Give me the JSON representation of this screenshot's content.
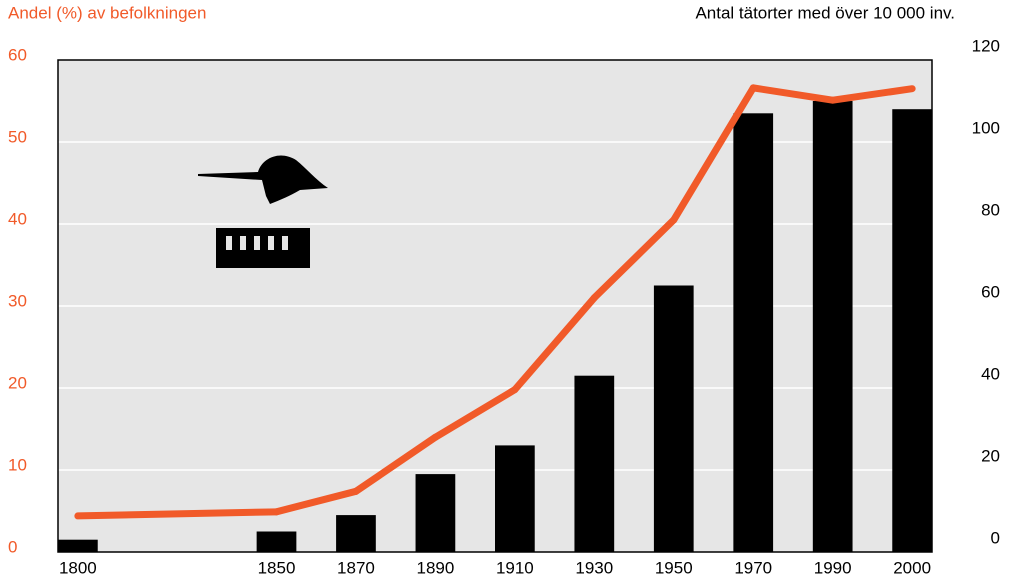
{
  "chart_data": {
    "type": "combo",
    "title": "Andel (%) av befolkningen",
    "y2_title": "Antal tätorter med över 10 000 inv.",
    "categories": [
      "1800",
      null,
      null,
      null,
      null,
      "1850",
      null,
      "1870",
      null,
      "1890",
      null,
      "1910",
      null,
      "1930",
      null,
      "1950",
      null,
      "1970",
      null,
      "1990",
      null,
      "2000"
    ],
    "series": [
      {
        "name": "Antal tätorter med över 10 000 inv.",
        "type": "bar",
        "axis": "y2",
        "color": "#000000",
        "values": [
          3,
          null,
          null,
          null,
          null,
          5,
          null,
          9,
          null,
          19,
          null,
          26,
          null,
          43,
          null,
          65,
          null,
          107,
          null,
          110,
          null,
          108
        ]
      },
      {
        "name": "Andel (%) av befolkningen",
        "type": "line",
        "axis": "y",
        "color": "#f15a29",
        "values": [
          4.4,
          null,
          null,
          null,
          null,
          4.9,
          null,
          7.4,
          null,
          14,
          null,
          19.8,
          null,
          31,
          null,
          40.5,
          null,
          56.6,
          null,
          55.1,
          null,
          56.5
        ]
      }
    ],
    "ylim": [
      0,
      60
    ],
    "yticks": [
      0,
      10,
      20,
      30,
      40,
      50,
      60
    ],
    "y2lim": [
      0,
      120
    ],
    "y2ticks": [
      0,
      20,
      40,
      60,
      80,
      100,
      120
    ],
    "ytick_color": "#f15a29",
    "grid": true
  }
}
